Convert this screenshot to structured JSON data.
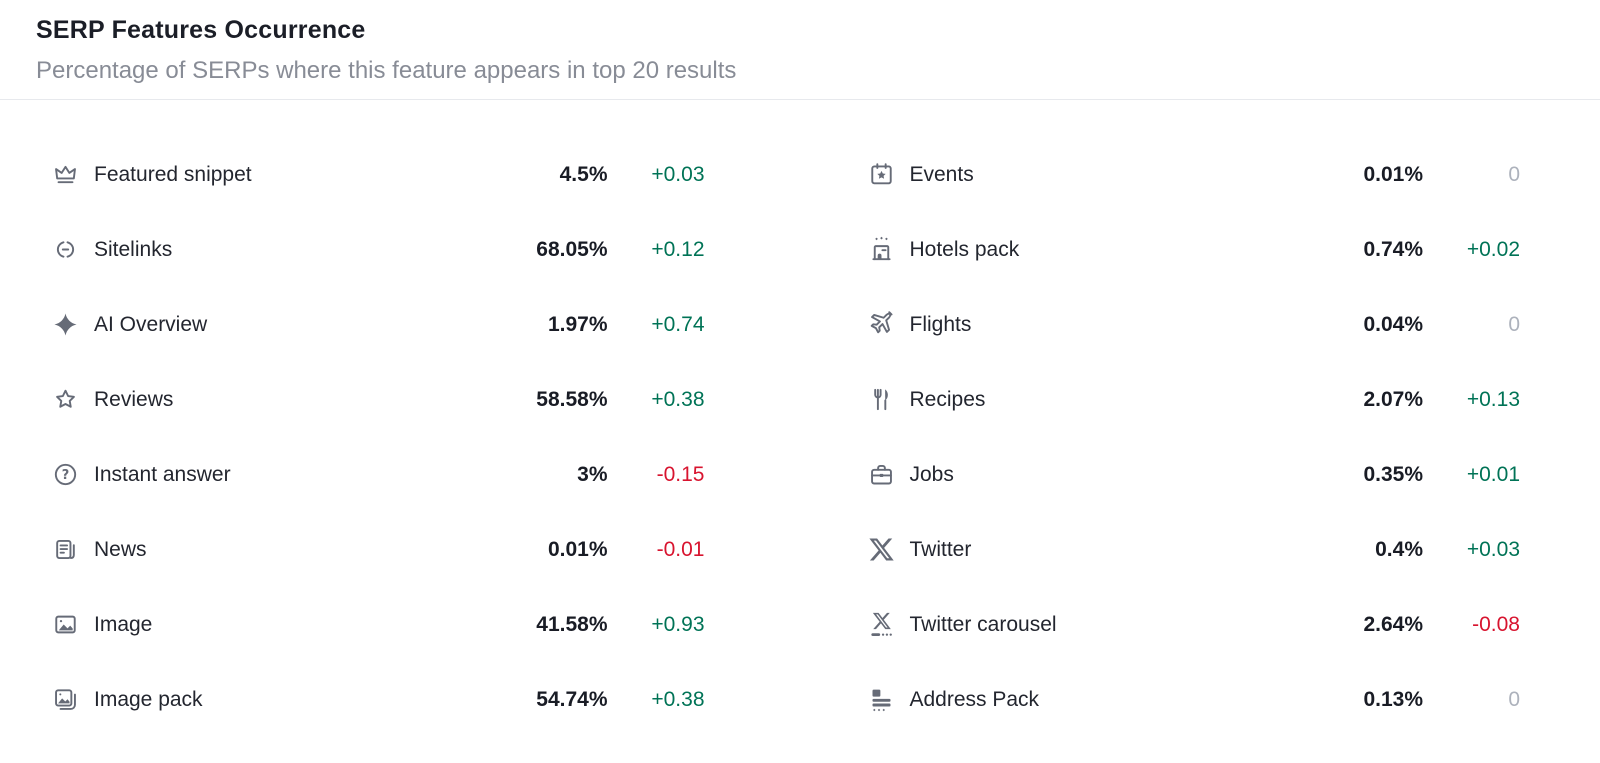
{
  "header": {
    "title": "SERP Features Occurrence",
    "subtitle": "Percentage of SERPs where this feature appears in top 20 results"
  },
  "colors": {
    "positive_change": "#007356",
    "negative_change": "#d8142f",
    "zero_change": "#adb2bc",
    "icon_gray": "#666b77",
    "title_text": "#1b1e27",
    "subtitle_text": "#888c96",
    "divider": "#e7e9ed"
  },
  "columns": {
    "left": {
      "rows": [
        {
          "icon": "crown-icon",
          "label": "Featured snippet",
          "value": "4.5%",
          "change": "+0.03",
          "direction": "up"
        },
        {
          "icon": "sitelinks-icon",
          "label": "Sitelinks",
          "value": "68.05%",
          "change": "+0.12",
          "direction": "up"
        },
        {
          "icon": "ai-overview-icon",
          "label": "AI Overview",
          "value": "1.97%",
          "change": "+0.74",
          "direction": "up"
        },
        {
          "icon": "star-icon",
          "label": "Reviews",
          "value": "58.58%",
          "change": "+0.38",
          "direction": "up"
        },
        {
          "icon": "question-circle-icon",
          "label": "Instant answer",
          "value": "3%",
          "change": "-0.15",
          "direction": "down"
        },
        {
          "icon": "news-icon",
          "label": "News",
          "value": "0.01%",
          "change": "-0.01",
          "direction": "down"
        },
        {
          "icon": "image-icon",
          "label": "Image",
          "value": "41.58%",
          "change": "+0.93",
          "direction": "up"
        },
        {
          "icon": "image-pack-icon",
          "label": "Image pack",
          "value": "54.74%",
          "change": "+0.38",
          "direction": "up"
        }
      ]
    },
    "right": {
      "rows": [
        {
          "icon": "calendar-star-icon",
          "label": "Events",
          "value": "0.01%",
          "change": "0",
          "direction": "zero"
        },
        {
          "icon": "hotel-icon",
          "label": "Hotels pack",
          "value": "0.74%",
          "change": "+0.02",
          "direction": "up"
        },
        {
          "icon": "plane-icon",
          "label": "Flights",
          "value": "0.04%",
          "change": "0",
          "direction": "zero"
        },
        {
          "icon": "restaurant-icon",
          "label": "Recipes",
          "value": "2.07%",
          "change": "+0.13",
          "direction": "up"
        },
        {
          "icon": "briefcase-icon",
          "label": "Jobs",
          "value": "0.35%",
          "change": "+0.01",
          "direction": "up"
        },
        {
          "icon": "x-logo-icon",
          "label": "Twitter",
          "value": "0.4%",
          "change": "+0.03",
          "direction": "up"
        },
        {
          "icon": "x-carousel-icon",
          "label": "Twitter carousel",
          "value": "2.64%",
          "change": "-0.08",
          "direction": "down"
        },
        {
          "icon": "address-pack-icon",
          "label": "Address Pack",
          "value": "0.13%",
          "change": "0",
          "direction": "zero"
        }
      ]
    }
  }
}
